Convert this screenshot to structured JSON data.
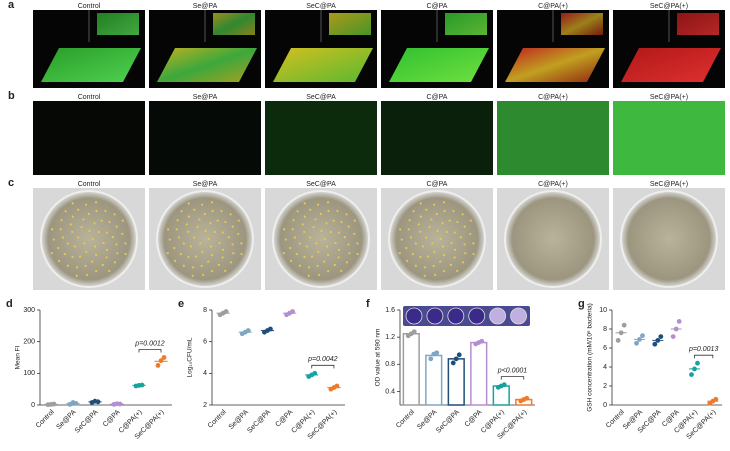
{
  "panels": {
    "a": {
      "label": "a",
      "captions": [
        "Control",
        "Se@PA",
        "SeC@PA",
        "C@PA",
        "C@PA(+)",
        "SeC@PA(+)"
      ]
    },
    "b": {
      "label": "b",
      "captions": [
        "Control",
        "Se@PA",
        "SeC@PA",
        "C@PA",
        "C@PA(+)",
        "SeC@PA(+)"
      ]
    },
    "c": {
      "label": "c",
      "captions": [
        "Control",
        "Se@PA",
        "SeC@PA",
        "C@PA",
        "C@PA(+)",
        "SeC@PA(+)"
      ]
    }
  },
  "chart_data": [
    {
      "type": "dot",
      "label": "d",
      "y_label": "Mean FI",
      "categories": [
        "Control",
        "Se@PA",
        "SeC@PA",
        "C@PA",
        "C@PA(+)",
        "SeC@PA(+)"
      ],
      "colors": [
        "#9e9e9e",
        "#7fa6c5",
        "#1f4e79",
        "#b48fd0",
        "#16a3a0",
        "#f07a2a"
      ],
      "values": [
        2,
        5,
        10,
        3,
        62,
        138
      ],
      "replicates": [
        [
          1,
          2,
          3
        ],
        [
          2,
          8,
          5
        ],
        [
          8,
          12,
          10
        ],
        [
          2,
          4,
          3
        ],
        [
          60,
          62,
          63
        ],
        [
          125,
          140,
          150
        ]
      ],
      "ylim": [
        0,
        300
      ],
      "yticks": [
        0,
        100,
        200,
        300
      ],
      "annotation": "p=0.0012"
    },
    {
      "type": "dot",
      "label": "e",
      "y_label": "Log₁₀CFU/mL",
      "categories": [
        "Control",
        "Se@PA",
        "SeC@PA",
        "C@PA",
        "C@PA(+)",
        "SeC@PA(+)"
      ],
      "colors": [
        "#9e9e9e",
        "#7fa6c5",
        "#1f4e79",
        "#b48fd0",
        "#16a3a0",
        "#f07a2a"
      ],
      "values": [
        7.8,
        6.6,
        6.7,
        7.8,
        3.9,
        3.1
      ],
      "replicates": [
        [
          7.7,
          7.8,
          7.9
        ],
        [
          6.5,
          6.6,
          6.7
        ],
        [
          6.6,
          6.7,
          6.8
        ],
        [
          7.7,
          7.8,
          7.9
        ],
        [
          3.8,
          3.9,
          4.0
        ],
        [
          3.0,
          3.1,
          3.2
        ]
      ],
      "ylim": [
        2,
        8
      ],
      "yticks": [
        2,
        4,
        6,
        8
      ],
      "annotation": "p=0.0042"
    },
    {
      "type": "bar",
      "label": "f",
      "y_label": "OD value at 590 nm",
      "categories": [
        "Control",
        "Se@PA",
        "SeC@PA",
        "C@PA",
        "C@PA(+)",
        "SeC@PA(+)"
      ],
      "colors": [
        "#9e9e9e",
        "#7fa6c5",
        "#1f4e79",
        "#b48fd0",
        "#16a3a0",
        "#f07a2a"
      ],
      "values": [
        1.25,
        0.93,
        0.88,
        1.12,
        0.48,
        0.28
      ],
      "replicates": [
        [
          1.22,
          1.25,
          1.28
        ],
        [
          0.88,
          0.95,
          0.97
        ],
        [
          0.82,
          0.88,
          0.94
        ],
        [
          1.1,
          1.12,
          1.14
        ],
        [
          0.46,
          0.48,
          0.5
        ],
        [
          0.26,
          0.28,
          0.3
        ]
      ],
      "ylim": [
        0.2,
        1.6
      ],
      "yticks": [
        0.4,
        0.8,
        1.2,
        1.6
      ],
      "annotation": "p<0.0001"
    },
    {
      "type": "dot",
      "label": "g",
      "y_label": "GSH concentration (mM/10⁶ bacteria)",
      "categories": [
        "Control",
        "Se@PA",
        "SeC@PA",
        "C@PA",
        "C@PA(+)",
        "SeC@PA(+)"
      ],
      "colors": [
        "#9e9e9e",
        "#7fa6c5",
        "#1f4e79",
        "#b48fd0",
        "#16a3a0",
        "#f07a2a"
      ],
      "values": [
        7.6,
        6.9,
        6.8,
        8.0,
        3.8,
        0.4
      ],
      "replicates": [
        [
          6.8,
          7.6,
          8.4
        ],
        [
          6.5,
          6.9,
          7.3
        ],
        [
          6.4,
          6.8,
          7.2
        ],
        [
          7.2,
          8.0,
          8.8
        ],
        [
          3.2,
          3.8,
          4.4
        ],
        [
          0.2,
          0.4,
          0.6
        ]
      ],
      "ylim": [
        0,
        10
      ],
      "yticks": [
        0,
        2,
        4,
        6,
        8,
        10
      ],
      "annotation": "p=0.0013"
    }
  ]
}
